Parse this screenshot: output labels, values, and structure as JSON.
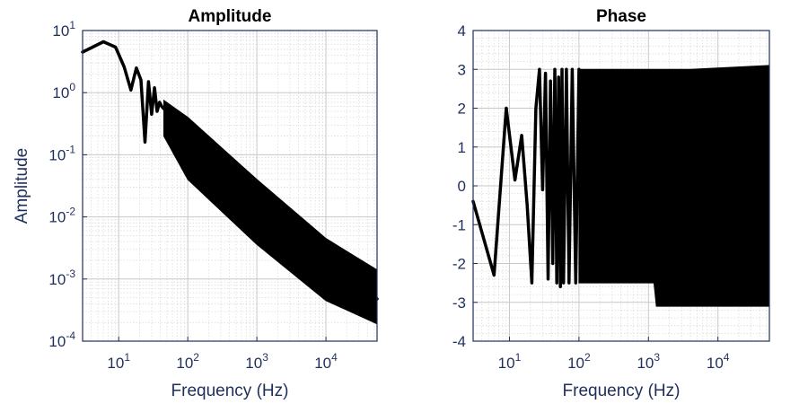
{
  "chart_data": [
    {
      "type": "line",
      "title": "Amplitude",
      "xlabel": "Frequency (Hz)",
      "ylabel": "Amplitude",
      "xscale": "log",
      "yscale": "log",
      "xlim": [
        3,
        55000
      ],
      "ylim": [
        0.0001,
        10
      ],
      "xticks": [
        {
          "value": 10,
          "base": "10",
          "exp": "1"
        },
        {
          "value": 100,
          "base": "10",
          "exp": "2"
        },
        {
          "value": 1000,
          "base": "10",
          "exp": "3"
        },
        {
          "value": 10000,
          "base": "10",
          "exp": "4"
        }
      ],
      "yticks": [
        {
          "value": 10,
          "base": "10",
          "exp": "1"
        },
        {
          "value": 1,
          "base": "10",
          "exp": "0"
        },
        {
          "value": 0.1,
          "base": "10",
          "exp": "-1"
        },
        {
          "value": 0.01,
          "base": "10",
          "exp": "-2"
        },
        {
          "value": 0.001,
          "base": "10",
          "exp": "-3"
        },
        {
          "value": 0.0001,
          "base": "10",
          "exp": "-4"
        }
      ],
      "grid": true,
      "color": "#000000",
      "x": [
        3,
        6,
        9,
        12,
        15,
        18,
        21,
        24,
        27,
        30,
        33,
        36,
        39,
        42,
        45,
        60,
        100,
        300,
        1000,
        3000,
        10000,
        30000,
        55000
      ],
      "y": [
        4.5,
        6.6,
        5.4,
        2.6,
        1.1,
        2.5,
        1.6,
        0.16,
        1.5,
        0.45,
        1.2,
        0.5,
        0.7,
        0.6,
        0.55,
        0.45,
        0.28,
        0.09,
        0.026,
        0.009,
        0.0026,
        0.0009,
        0.00048
      ],
      "envelope_lower": {
        "x": [
          45,
          100,
          1000,
          10000,
          55000
        ],
        "y": [
          0.2,
          0.04,
          0.0036,
          0.00045,
          0.00019
        ]
      },
      "envelope_upper": {
        "x": [
          45,
          100,
          1000,
          10000,
          55000
        ],
        "y": [
          0.75,
          0.4,
          0.04,
          0.0045,
          0.0014
        ]
      }
    },
    {
      "type": "line",
      "title": "Phase",
      "xlabel": "Frequency (Hz)",
      "ylabel": "",
      "xscale": "log",
      "yscale": "linear",
      "xlim": [
        3,
        55000
      ],
      "ylim": [
        -4,
        4
      ],
      "xticks": [
        {
          "value": 10,
          "base": "10",
          "exp": "1"
        },
        {
          "value": 100,
          "base": "10",
          "exp": "2"
        },
        {
          "value": 1000,
          "base": "10",
          "exp": "3"
        },
        {
          "value": 10000,
          "base": "10",
          "exp": "4"
        }
      ],
      "yticks": [
        {
          "value": 4,
          "label": "4"
        },
        {
          "value": 3,
          "label": "3"
        },
        {
          "value": 2,
          "label": "2"
        },
        {
          "value": 1,
          "label": "1"
        },
        {
          "value": 0,
          "label": "0"
        },
        {
          "value": -1,
          "label": "-1"
        },
        {
          "value": -2,
          "label": "-2"
        },
        {
          "value": -3,
          "label": "-3"
        },
        {
          "value": -4,
          "label": "-4"
        }
      ],
      "grid": true,
      "color": "#000000",
      "x": [
        3,
        6,
        9,
        12,
        15,
        18,
        21,
        24,
        27,
        30,
        33,
        36,
        39,
        42,
        45,
        48,
        51,
        54,
        57,
        60,
        66,
        72,
        80,
        90,
        100
      ],
      "y": [
        -0.4,
        -2.3,
        2.0,
        0.15,
        1.3,
        -0.5,
        -2.5,
        2.0,
        3.0,
        -0.1,
        2.9,
        -2.4,
        2.7,
        -2.0,
        3.0,
        -2.5,
        2.8,
        -2.6,
        3.0,
        -2.5,
        3.0,
        -2.5,
        3.0,
        -2.5,
        3.0
      ],
      "band_top": {
        "x": [
          100,
          3500,
          4000,
          55000
        ],
        "y": [
          3.0,
          3.0,
          3.0,
          3.1
        ]
      },
      "band_bottom": {
        "x": [
          100,
          1200,
          1300,
          55000
        ],
        "y": [
          -2.5,
          -2.5,
          -3.1,
          -3.1
        ]
      }
    }
  ]
}
